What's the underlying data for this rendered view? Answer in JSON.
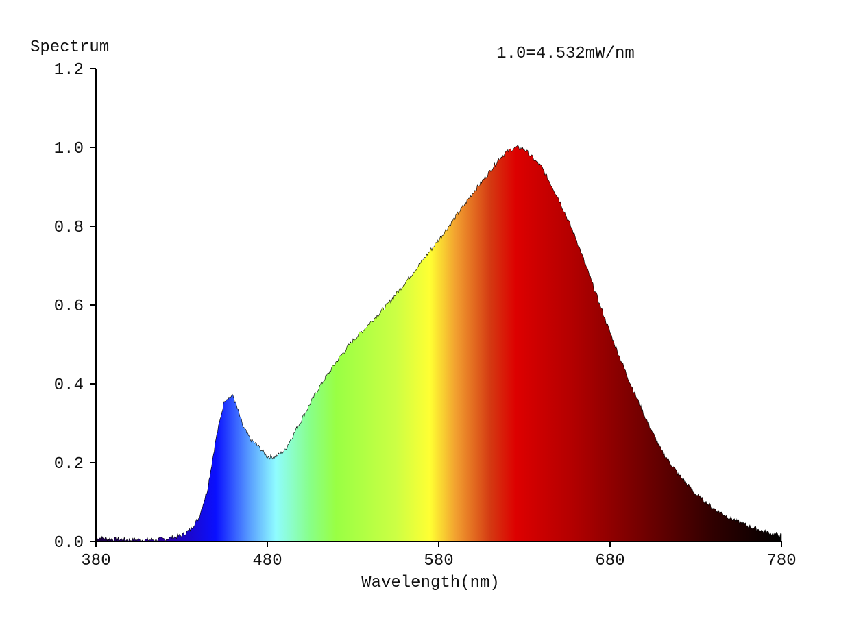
{
  "chart_data": {
    "type": "area",
    "ylabel": "Spectrum",
    "xlabel": "Wavelength(nm)",
    "annotation": "1.0=4.532mW/nm",
    "xlim": [
      380,
      780
    ],
    "ylim": [
      0,
      1.2
    ],
    "xticks": [
      380,
      480,
      580,
      680,
      780
    ],
    "yticks": [
      0.0,
      0.2,
      0.4,
      0.6,
      0.8,
      1.0,
      1.2
    ],
    "ytick_labels": [
      "0.0",
      "0.2",
      "0.4",
      "0.6",
      "0.8",
      "1.0",
      "1.2"
    ],
    "grid": false,
    "fill": "wavelength color gradient",
    "series": [
      {
        "x": [
          380,
          390,
          400,
          410,
          420,
          430,
          435,
          440,
          445,
          450,
          455,
          460,
          463,
          466,
          470,
          475,
          480,
          485,
          490,
          495,
          500,
          510,
          520,
          530,
          540,
          550,
          560,
          570,
          580,
          590,
          600,
          610,
          615,
          620,
          625,
          630,
          640,
          650,
          660,
          670,
          680,
          690,
          700,
          710,
          720,
          730,
          740,
          750,
          760,
          770,
          780
        ],
        "y": [
          0.01,
          0.006,
          0.004,
          0.004,
          0.006,
          0.015,
          0.03,
          0.06,
          0.13,
          0.26,
          0.36,
          0.37,
          0.33,
          0.29,
          0.26,
          0.24,
          0.215,
          0.215,
          0.23,
          0.27,
          0.31,
          0.39,
          0.455,
          0.51,
          0.555,
          0.6,
          0.655,
          0.71,
          0.765,
          0.825,
          0.885,
          0.94,
          0.97,
          0.99,
          1.0,
          0.995,
          0.95,
          0.87,
          0.77,
          0.65,
          0.53,
          0.42,
          0.32,
          0.23,
          0.17,
          0.12,
          0.085,
          0.06,
          0.04,
          0.025,
          0.015
        ]
      }
    ],
    "gradient_stops": [
      {
        "wavelength": 380,
        "color": "#1a0040"
      },
      {
        "wavelength": 420,
        "color": "#2a00a0"
      },
      {
        "wavelength": 450,
        "color": "#0a10ff"
      },
      {
        "wavelength": 470,
        "color": "#5aa0ff"
      },
      {
        "wavelength": 485,
        "color": "#8ffcff"
      },
      {
        "wavelength": 505,
        "color": "#88ff88"
      },
      {
        "wavelength": 520,
        "color": "#99ff44"
      },
      {
        "wavelength": 555,
        "color": "#ccff44"
      },
      {
        "wavelength": 575,
        "color": "#ffff33"
      },
      {
        "wavelength": 590,
        "color": "#f2a030"
      },
      {
        "wavelength": 610,
        "color": "#d43a12"
      },
      {
        "wavelength": 625,
        "color": "#dd0000"
      },
      {
        "wavelength": 660,
        "color": "#b00000"
      },
      {
        "wavelength": 700,
        "color": "#700000"
      },
      {
        "wavelength": 740,
        "color": "#300000"
      },
      {
        "wavelength": 780,
        "color": "#000000"
      }
    ]
  }
}
